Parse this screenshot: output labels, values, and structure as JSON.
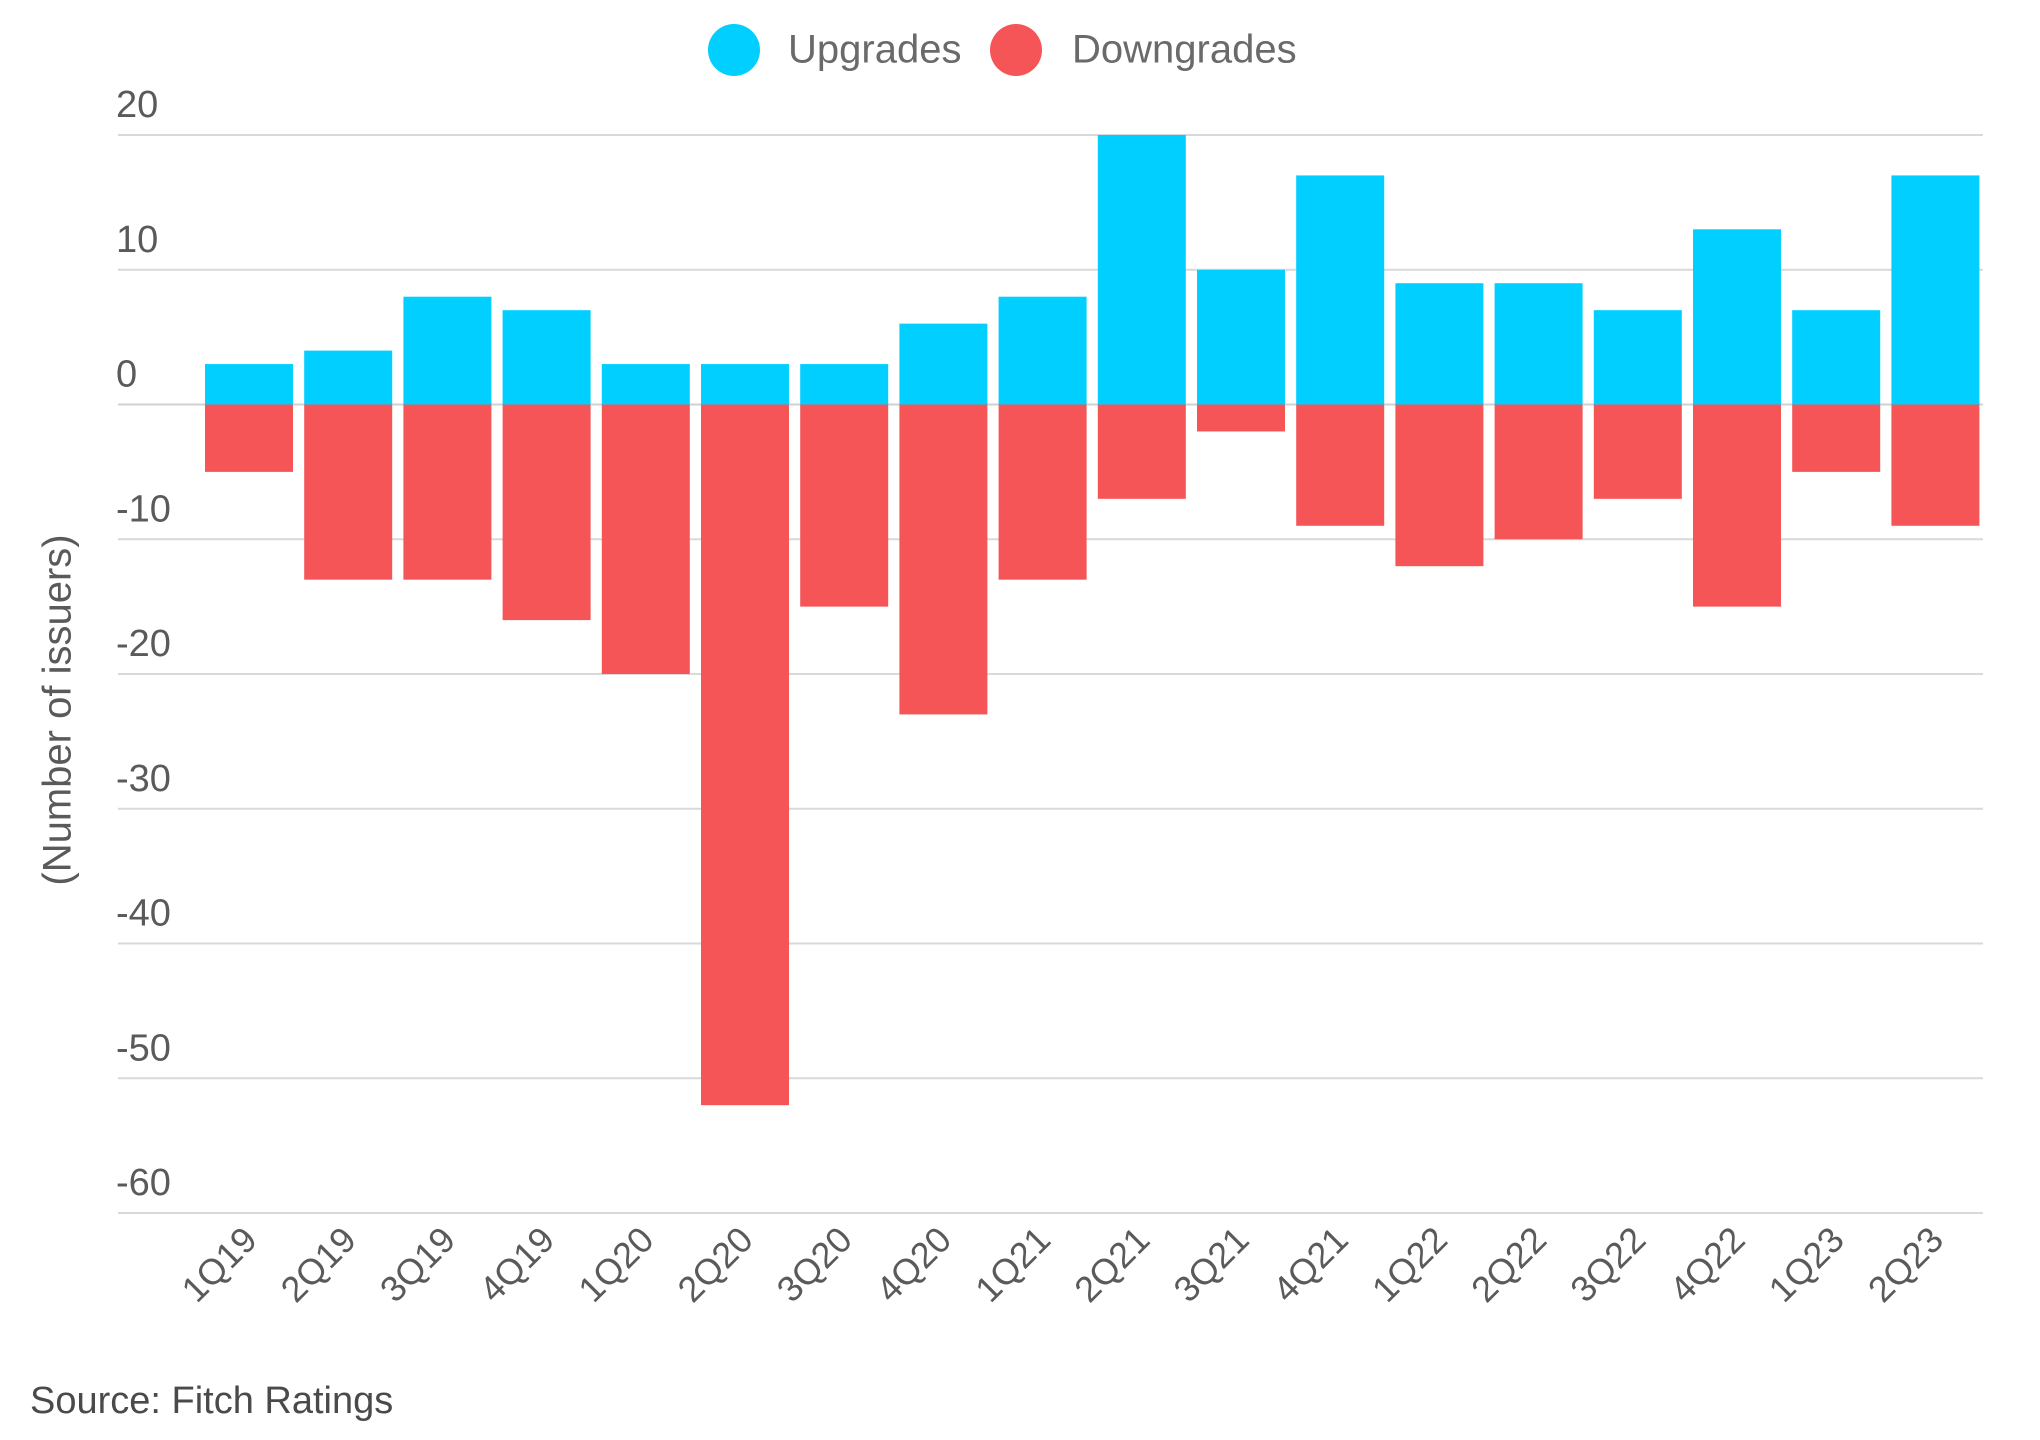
{
  "chart_data": {
    "type": "bar",
    "title": "",
    "xlabel": "",
    "ylabel": "(Number of issuers)",
    "ylim": [
      -60,
      20
    ],
    "yticks": [
      20,
      10,
      0,
      -10,
      -20,
      -30,
      -40,
      -50,
      -60
    ],
    "grid": true,
    "legend_position": "top-center",
    "categories": [
      "1Q19",
      "2Q19",
      "3Q19",
      "4Q19",
      "1Q20",
      "2Q20",
      "3Q20",
      "4Q20",
      "1Q21",
      "2Q21",
      "3Q21",
      "4Q21",
      "1Q22",
      "2Q22",
      "3Q22",
      "4Q22",
      "1Q23",
      "2Q23"
    ],
    "series": [
      {
        "name": "Upgrades",
        "color": "#00CFFF",
        "values": [
          3,
          4,
          8,
          7,
          3,
          3,
          3,
          6,
          8,
          20,
          10,
          17,
          9,
          9,
          7,
          13,
          7,
          17
        ]
      },
      {
        "name": "Downgrades",
        "color": "#F55557",
        "values": [
          -5,
          -13,
          -13,
          -16,
          -20,
          -52,
          -15,
          -23,
          -13,
          -7,
          -2,
          -9,
          -12,
          -10,
          -7,
          -15,
          -5,
          -9
        ]
      }
    ],
    "source": "Source: Fitch Ratings"
  }
}
